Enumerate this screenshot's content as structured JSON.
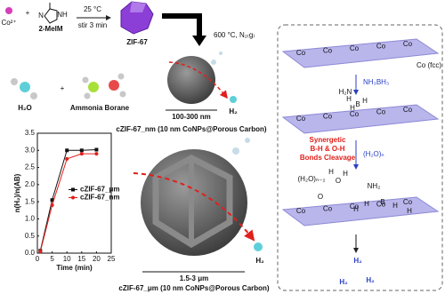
{
  "reaction": {
    "cobalt": "Co²⁺",
    "plus": "+",
    "ligand": "2-MeIM",
    "ring_n": "N",
    "ring_nh": "NH",
    "temperature": "25 °C",
    "time": "stir 3 min",
    "product": "ZIF-67",
    "pyrolysis": "600 °C, N₂₍g₎"
  },
  "reactants": {
    "water": "H₂O",
    "plus": "+",
    "ammonia_borane": "Ammonia Borane"
  },
  "nano": {
    "size": "100-300 nm",
    "gas": "H₂",
    "caption": "cZIF-67_nm (10 nm CoNPs@Porous Carbon)"
  },
  "micro": {
    "size": "1.5-3 μm",
    "gas": "H₂",
    "caption": "cZIF-67_μm (10 nm CoNPs@Porous Carbon)"
  },
  "mechanism": {
    "surface": "Co (fcc)",
    "co_labels": [
      "Co",
      "Co",
      "Co",
      "Co",
      "Co",
      "Co",
      "Co",
      "Co",
      "Co",
      "Co",
      "Co",
      "Co",
      "Co",
      "Co",
      "Co"
    ],
    "step1": "NH₃BH₃",
    "step2": "(H₂O)ₙ",
    "note": [
      "Synergetic",
      "B-H & O-H",
      "Bonds Cleavage"
    ],
    "atoms1": [
      "H₂N",
      "B",
      "H",
      "H",
      "H"
    ],
    "atoms2": [
      "(H₂O)ₙ₋₂",
      "O",
      "H",
      "H",
      "O",
      "NH₂",
      "B",
      "H",
      "H",
      "H",
      "H"
    ],
    "products": [
      "H₂",
      "H₂",
      "H₂"
    ]
  },
  "chart_data": {
    "type": "line",
    "x_label": "Time (min)",
    "y_label": "n(H₂)/n(AB)",
    "x": [
      1,
      5,
      10,
      15,
      20
    ],
    "series": [
      {
        "name": "cZIF-67_μm",
        "color": "#111111",
        "marker": "square",
        "values": [
          0.07,
          1.55,
          3.0,
          3.0,
          3.02
        ]
      },
      {
        "name": "cZIF-67_nm",
        "color": "#e0201b",
        "marker": "circle",
        "values": [
          0.05,
          1.4,
          2.75,
          2.9,
          2.9
        ]
      }
    ],
    "xlim": [
      0,
      25
    ],
    "xticks": [
      0,
      5,
      10,
      15,
      20,
      25
    ],
    "ylim": [
      0,
      3.5
    ],
    "yticks": [
      {
        "value": 0,
        "label": "0.0"
      },
      0.5,
      {
        "value": 1,
        "label": "1.0"
      },
      1.5,
      {
        "value": 2,
        "label": "2.0"
      },
      2.5,
      {
        "value": 3,
        "label": "3.0"
      },
      3.5
    ],
    "legend": "center right"
  }
}
